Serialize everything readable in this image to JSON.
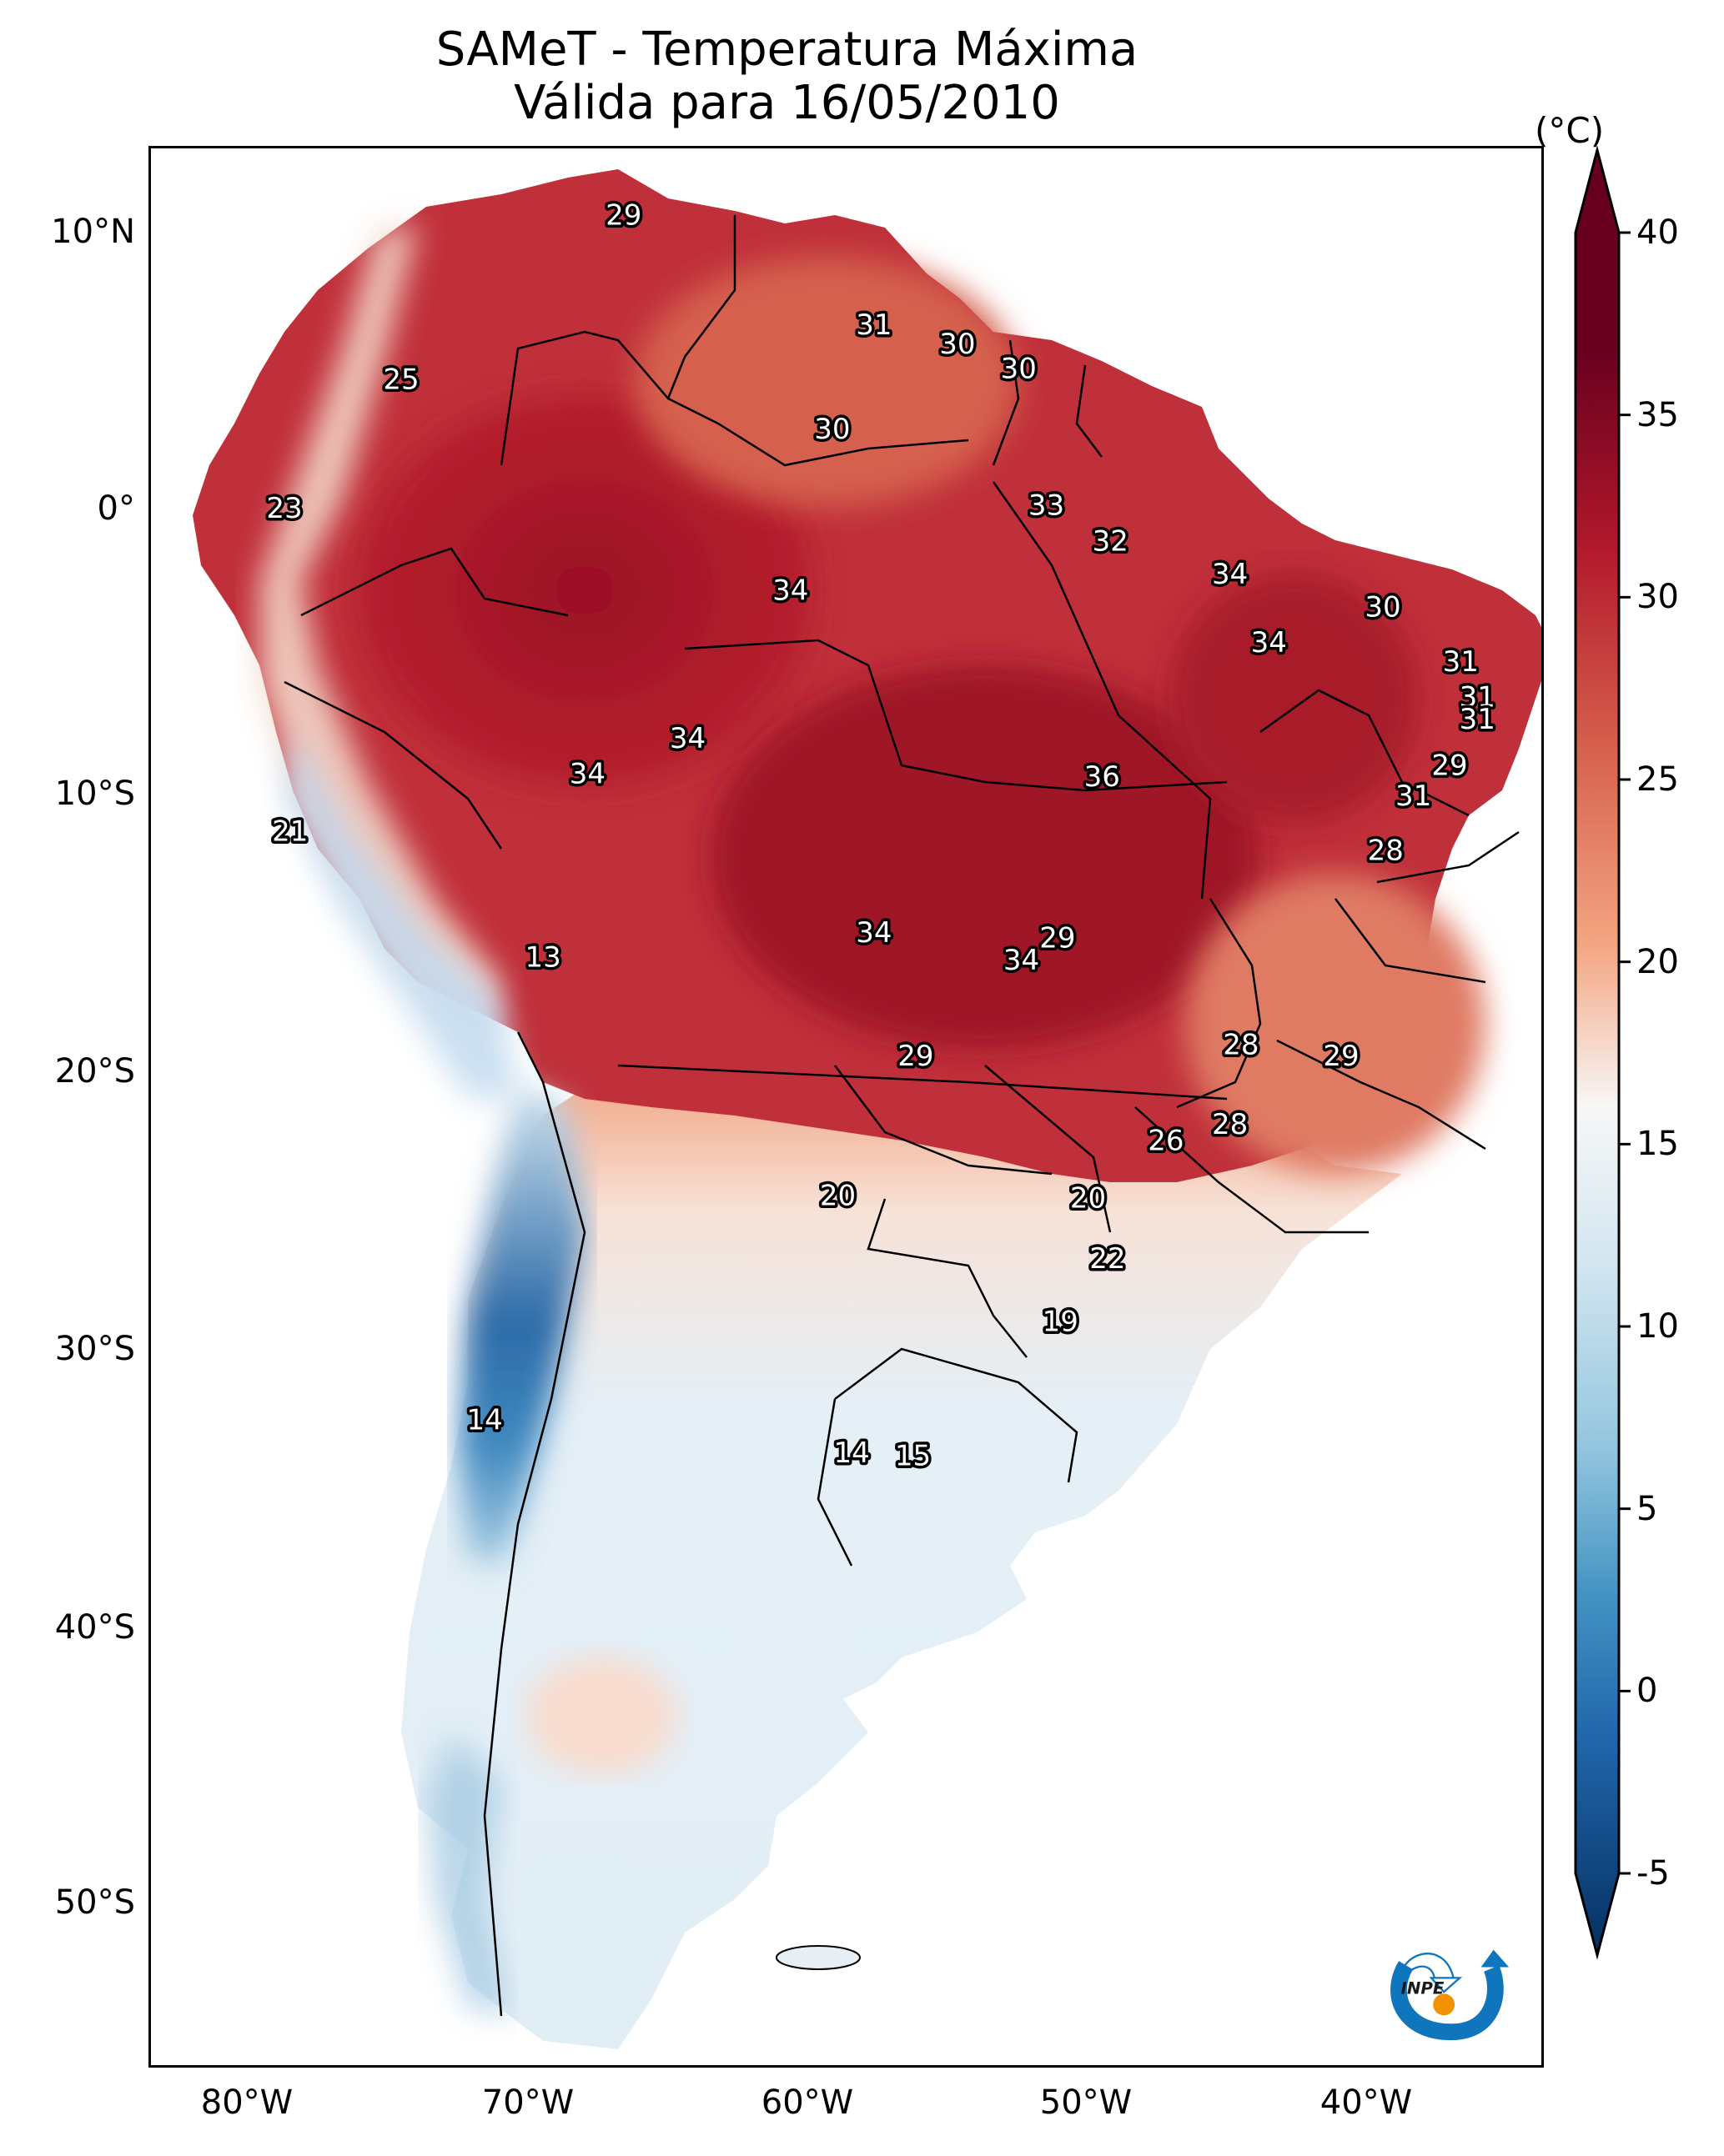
{
  "title": {
    "line1": "SAMeT - Temperatura Máxima",
    "line2": "Válida para 16/05/2010"
  },
  "colorbar": {
    "unit": "(°C)",
    "ticks": [
      "40",
      "35",
      "30",
      "25",
      "20",
      "15",
      "10",
      "5",
      "0",
      "-5"
    ],
    "range": [
      -5,
      40
    ],
    "extend": "both",
    "colormap": "RdBu_r",
    "colors": {
      "max": "#67001f",
      "high": "#b2182b",
      "mid_high": "#d6604d",
      "light_red": "#f4a582",
      "neutral": "#f7f7f7",
      "light_blue": "#d1e5f0",
      "mid_blue": "#4393c3",
      "low": "#2166ac",
      "min": "#053061"
    }
  },
  "axes": {
    "lat_ticks": [
      "10°N",
      "0°",
      "10°S",
      "20°S",
      "30°S",
      "40°S",
      "50°S"
    ],
    "lon_ticks": [
      "80°W",
      "70°W",
      "60°W",
      "50°W",
      "40°W"
    ],
    "lon_range": [
      -83,
      -33
    ],
    "lat_range": [
      -57,
      13
    ]
  },
  "logo": {
    "text": "INPE",
    "primary": "#0f75bc",
    "accent": "#f39200"
  },
  "chart_data": {
    "type": "heatmap",
    "title": "SAMeT - Temperatura Máxima — Válida para 16/05/2010",
    "xlabel": "",
    "ylabel": "",
    "legend": "colorbar-right",
    "annotations": [
      {
        "value": 29,
        "lon": -66.0,
        "lat": 10.5
      },
      {
        "value": 25,
        "lon": -74.0,
        "lat": 4.5
      },
      {
        "value": 31,
        "lon": -57.0,
        "lat": 6.5
      },
      {
        "value": 30,
        "lon": -54.0,
        "lat": 5.8
      },
      {
        "value": 30,
        "lon": -51.8,
        "lat": 4.9
      },
      {
        "value": 30,
        "lon": -58.5,
        "lat": 2.7
      },
      {
        "value": 23,
        "lon": -78.2,
        "lat": -0.2
      },
      {
        "value": 33,
        "lon": -50.8,
        "lat": -0.1
      },
      {
        "value": 32,
        "lon": -48.5,
        "lat": -1.4
      },
      {
        "value": 34,
        "lon": -60.0,
        "lat": -3.2
      },
      {
        "value": 34,
        "lon": -44.2,
        "lat": -2.6
      },
      {
        "value": 30,
        "lon": -38.7,
        "lat": -3.8
      },
      {
        "value": 34,
        "lon": -42.8,
        "lat": -5.1
      },
      {
        "value": 31,
        "lon": -35.9,
        "lat": -5.8
      },
      {
        "value": 31,
        "lon": -35.3,
        "lat": -7.1
      },
      {
        "value": 31,
        "lon": -35.3,
        "lat": -7.9
      },
      {
        "value": 34,
        "lon": -63.7,
        "lat": -8.6
      },
      {
        "value": 34,
        "lon": -67.3,
        "lat": -9.9
      },
      {
        "value": 36,
        "lon": -48.8,
        "lat": -10.0
      },
      {
        "value": 29,
        "lon": -36.3,
        "lat": -9.6
      },
      {
        "value": 31,
        "lon": -37.6,
        "lat": -10.7
      },
      {
        "value": 21,
        "lon": -78.0,
        "lat": -12.0
      },
      {
        "value": 28,
        "lon": -38.6,
        "lat": -12.7
      },
      {
        "value": 13,
        "lon": -68.9,
        "lat": -16.6
      },
      {
        "value": 34,
        "lon": -57.0,
        "lat": -15.7
      },
      {
        "value": 29,
        "lon": -50.4,
        "lat": -15.9
      },
      {
        "value": 34,
        "lon": -51.7,
        "lat": -16.7
      },
      {
        "value": 29,
        "lon": -55.5,
        "lat": -20.2
      },
      {
        "value": 28,
        "lon": -43.8,
        "lat": -19.8
      },
      {
        "value": 29,
        "lon": -40.2,
        "lat": -20.2
      },
      {
        "value": 26,
        "lon": -46.5,
        "lat": -23.3
      },
      {
        "value": 28,
        "lon": -44.2,
        "lat": -22.7
      },
      {
        "value": 20,
        "lon": -58.3,
        "lat": -25.3
      },
      {
        "value": 20,
        "lon": -49.3,
        "lat": -25.4
      },
      {
        "value": 22,
        "lon": -48.6,
        "lat": -27.6
      },
      {
        "value": 19,
        "lon": -50.3,
        "lat": -29.9
      },
      {
        "value": 14,
        "lon": -71.0,
        "lat": -33.5
      },
      {
        "value": 14,
        "lon": -57.8,
        "lat": -34.7
      },
      {
        "value": 15,
        "lon": -55.6,
        "lat": -34.8
      }
    ]
  }
}
